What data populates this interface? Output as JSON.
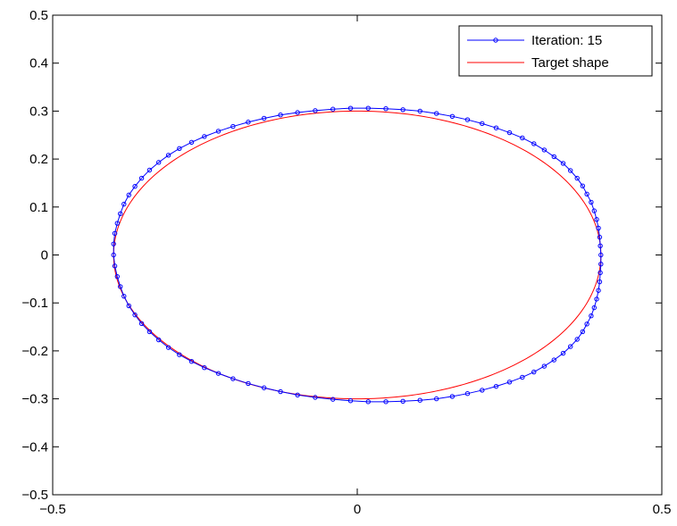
{
  "chart_data": {
    "type": "line",
    "title": "",
    "xlabel": "",
    "ylabel": "",
    "xlim": [
      -0.5,
      0.5
    ],
    "ylim": [
      -0.5,
      0.5
    ],
    "grid": false,
    "legend_position": "top-right",
    "x_ticks": [
      {
        "value": -0.5,
        "label": "−0.5"
      },
      {
        "value": 0,
        "label": "0"
      },
      {
        "value": 0.5,
        "label": "0.5"
      }
    ],
    "y_ticks": [
      {
        "value": 0.5,
        "label": "0.5"
      },
      {
        "value": 0.4,
        "label": "0.4"
      },
      {
        "value": 0.3,
        "label": "0.3"
      },
      {
        "value": 0.2,
        "label": "0.2"
      },
      {
        "value": 0.1,
        "label": "0.1"
      },
      {
        "value": 0,
        "label": "0"
      },
      {
        "value": -0.1,
        "label": "−0.1"
      },
      {
        "value": -0.2,
        "label": "−0.2"
      },
      {
        "value": -0.3,
        "label": "−0.3"
      },
      {
        "value": -0.4,
        "label": "−0.4"
      },
      {
        "value": -0.5,
        "label": "−0.5"
      }
    ],
    "series": [
      {
        "name": "Iteration: 15",
        "color": "#0000ff",
        "marker": "circle",
        "x": [
          0.4,
          0.399,
          0.398,
          0.396,
          0.393,
          0.389,
          0.384,
          0.377,
          0.37,
          0.361,
          0.35,
          0.338,
          0.323,
          0.307,
          0.29,
          0.271,
          0.25,
          0.228,
          0.205,
          0.181,
          0.156,
          0.13,
          0.103,
          0.075,
          0.047,
          0.018,
          -0.011,
          -0.04,
          -0.069,
          -0.098,
          -0.126,
          -0.153,
          -0.179,
          -0.204,
          -0.228,
          -0.251,
          -0.272,
          -0.292,
          -0.31,
          -0.326,
          -0.341,
          -0.354,
          -0.365,
          -0.375,
          -0.383,
          -0.389,
          -0.394,
          -0.398,
          -0.4,
          -0.4,
          -0.398,
          -0.394,
          -0.389,
          -0.383,
          -0.375,
          -0.365,
          -0.354,
          -0.341,
          -0.326,
          -0.31,
          -0.292,
          -0.272,
          -0.251,
          -0.228,
          -0.204,
          -0.179,
          -0.153,
          -0.126,
          -0.098,
          -0.069,
          -0.04,
          -0.011,
          0.018,
          0.047,
          0.075,
          0.103,
          0.13,
          0.156,
          0.181,
          0.205,
          0.228,
          0.25,
          0.271,
          0.29,
          0.307,
          0.323,
          0.338,
          0.35,
          0.361,
          0.37,
          0.377,
          0.384,
          0.389,
          0.393,
          0.396,
          0.398,
          0.399,
          0.4
        ],
        "y": [
          0.0,
          0.019,
          0.037,
          0.056,
          0.074,
          0.092,
          0.11,
          0.127,
          0.144,
          0.16,
          0.176,
          0.191,
          0.205,
          0.219,
          0.232,
          0.244,
          0.255,
          0.265,
          0.274,
          0.282,
          0.289,
          0.295,
          0.3,
          0.303,
          0.305,
          0.306,
          0.306,
          0.304,
          0.301,
          0.297,
          0.292,
          0.285,
          0.277,
          0.268,
          0.258,
          0.247,
          0.235,
          0.222,
          0.208,
          0.193,
          0.177,
          0.16,
          0.143,
          0.125,
          0.106,
          0.086,
          0.066,
          0.045,
          0.023,
          0.0,
          -0.023,
          -0.045,
          -0.066,
          -0.086,
          -0.106,
          -0.125,
          -0.143,
          -0.16,
          -0.177,
          -0.193,
          -0.208,
          -0.222,
          -0.235,
          -0.247,
          -0.258,
          -0.268,
          -0.277,
          -0.285,
          -0.292,
          -0.297,
          -0.301,
          -0.304,
          -0.306,
          -0.306,
          -0.305,
          -0.303,
          -0.3,
          -0.295,
          -0.289,
          -0.282,
          -0.274,
          -0.265,
          -0.255,
          -0.244,
          -0.232,
          -0.219,
          -0.205,
          -0.191,
          -0.176,
          -0.16,
          -0.144,
          -0.127,
          -0.11,
          -0.092,
          -0.074,
          -0.056,
          -0.037,
          -0.019
        ]
      },
      {
        "name": "Target shape",
        "color": "#ff0000",
        "marker": "none",
        "shape": "ellipse",
        "center": [
          0,
          0
        ],
        "semi_axis_x": 0.4,
        "semi_axis_y": 0.3
      }
    ]
  }
}
